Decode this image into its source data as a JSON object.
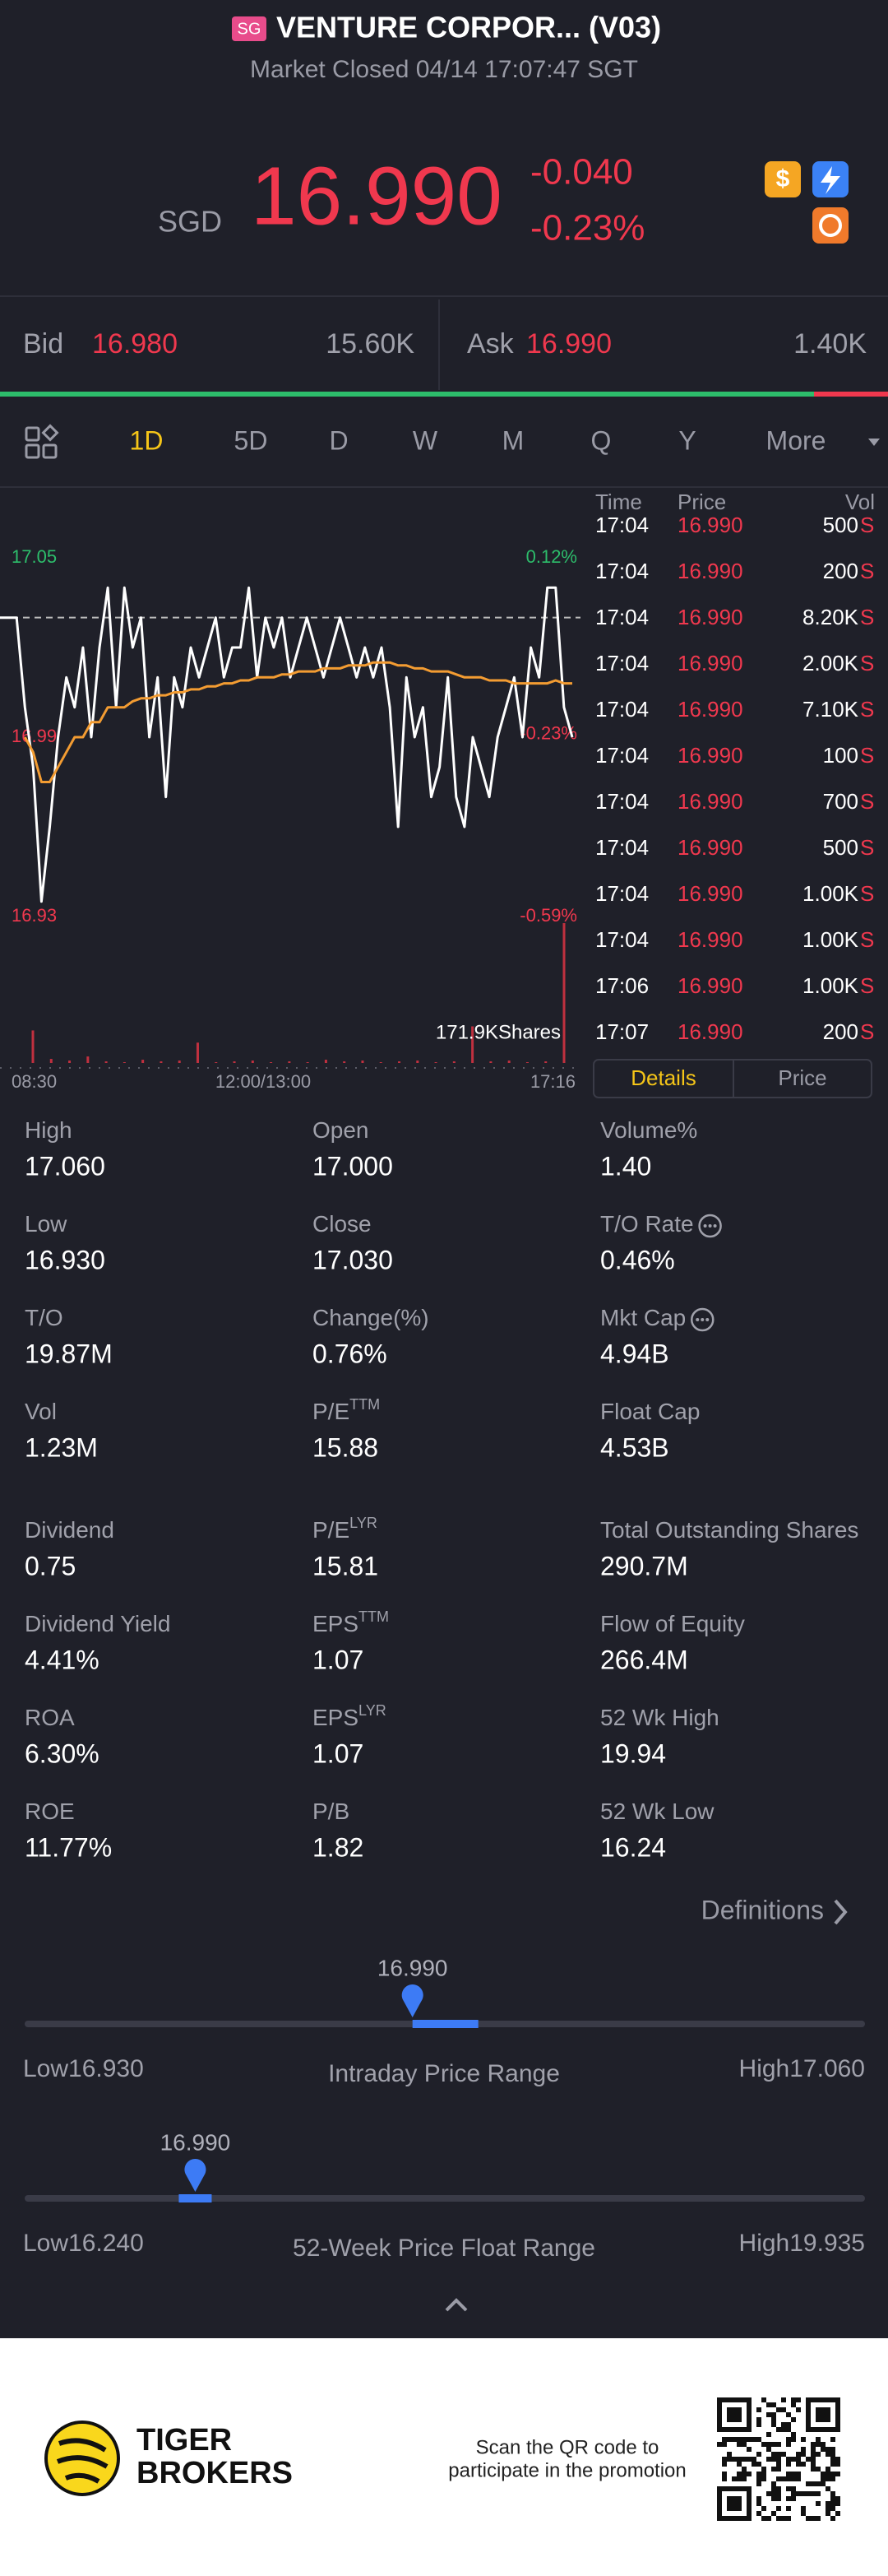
{
  "header": {
    "badge": "SG",
    "title": "VENTURE CORPOR... (V03)",
    "status": "Market Closed 04/14 17:07:47 SGT",
    "currency": "SGD",
    "price": "16.990",
    "change": "-0.040",
    "change_pct": "-0.23%"
  },
  "quote": {
    "bid_label": "Bid",
    "bid": "16.980",
    "bid_size": "15.60K",
    "ask_label": "Ask",
    "ask": "16.990",
    "ask_size": "1.40K"
  },
  "tabs": [
    "1D",
    "5D",
    "D",
    "W",
    "M",
    "Q",
    "Y",
    "More"
  ],
  "active_tab": 0,
  "chart_data": {
    "type": "line",
    "series": [
      {
        "color": "#ffffff",
        "values": [
          17.03,
          17.03,
          17.03,
          17.0,
          16.98,
          16.935,
          16.96,
          16.99,
          17.01,
          17.0,
          17.02,
          16.99,
          17.02,
          17.04,
          17.0,
          17.04,
          17.02,
          17.03,
          16.99,
          17.01,
          16.97,
          17.01,
          17.0,
          17.02,
          17.01,
          17.02,
          17.03,
          17.01,
          17.02,
          17.02,
          17.04,
          17.01,
          17.03,
          17.02,
          17.03,
          17.01,
          17.02,
          17.03,
          17.02,
          17.01,
          17.02,
          17.03,
          17.02,
          17.01,
          17.02,
          17.01,
          17.02,
          17.0,
          16.96,
          17.01,
          16.99,
          17.0,
          16.97,
          16.98,
          17.01,
          16.97,
          16.96,
          16.99,
          16.98,
          16.97,
          16.99,
          17.0,
          17.01,
          16.99,
          17.02,
          17.01,
          17.04,
          17.04,
          17.0,
          16.99
        ]
      },
      {
        "color": "#f39c32",
        "values": [
          null,
          null,
          null,
          16.99,
          16.985,
          16.975,
          16.975,
          16.98,
          16.985,
          16.99,
          16.99,
          16.995,
          16.995,
          17.0,
          17.0,
          17.0,
          17.002,
          17.003,
          17.003,
          17.004,
          17.004,
          17.005,
          17.005,
          17.006,
          17.006,
          17.007,
          17.007,
          17.008,
          17.008,
          17.009,
          17.009,
          17.01,
          17.01,
          17.01,
          17.011,
          17.011,
          17.012,
          17.012,
          17.012,
          17.013,
          17.013,
          17.013,
          17.014,
          17.014,
          17.014,
          17.015,
          17.015,
          17.015,
          17.014,
          17.014,
          17.013,
          17.013,
          17.012,
          17.012,
          17.012,
          17.011,
          17.01,
          17.01,
          17.01,
          17.009,
          17.009,
          17.009,
          17.008,
          17.008,
          17.008,
          17.008,
          17.008,
          17.009,
          17.008,
          17.008
        ]
      }
    ],
    "ylim": [
      16.93,
      17.05
    ],
    "yticks": [
      17.05,
      16.99,
      16.93
    ],
    "y2lim": [
      -0.59,
      0.12
    ],
    "y2ticks": [
      {
        "value": 0.12,
        "label": "0.12%"
      },
      {
        "value": -0.23,
        "label": "-0.23%"
      },
      {
        "value": -0.59,
        "label": "-0.59%"
      }
    ],
    "reference_line": 17.03,
    "up_color": "#2dbd6b",
    "down_color": "#f0384e",
    "xtick_labels": [
      "08:30",
      "12:00/13:00",
      "17:16"
    ],
    "volume": {
      "values": [
        40,
        5,
        3,
        8,
        2,
        1,
        4,
        2,
        3,
        25,
        1,
        2,
        3,
        1,
        2,
        1,
        4,
        2,
        3,
        1,
        2,
        3,
        1,
        2,
        45,
        2,
        3,
        1,
        2,
        171.9
      ],
      "ylim": [
        0,
        171.9
      ],
      "color": "#c0303f",
      "label": "171.9KShares"
    }
  },
  "trades": {
    "columns": [
      "Time",
      "Price",
      "Vol"
    ],
    "rows": [
      [
        "17:04",
        "16.990",
        "500",
        "S"
      ],
      [
        "17:04",
        "16.990",
        "200",
        "S"
      ],
      [
        "17:04",
        "16.990",
        "8.20K",
        "S"
      ],
      [
        "17:04",
        "16.990",
        "2.00K",
        "S"
      ],
      [
        "17:04",
        "16.990",
        "7.10K",
        "S"
      ],
      [
        "17:04",
        "16.990",
        "100",
        "S"
      ],
      [
        "17:04",
        "16.990",
        "700",
        "S"
      ],
      [
        "17:04",
        "16.990",
        "500",
        "S"
      ],
      [
        "17:04",
        "16.990",
        "1.00K",
        "S"
      ],
      [
        "17:04",
        "16.990",
        "1.00K",
        "S"
      ],
      [
        "17:06",
        "16.990",
        "1.00K",
        "S"
      ],
      [
        "17:07",
        "16.990",
        "200",
        "S"
      ]
    ]
  },
  "detail_tabs": [
    "Details",
    "Price"
  ],
  "stats": [
    {
      "label": "High",
      "value": "17.060"
    },
    {
      "label": "Open",
      "value": "17.000"
    },
    {
      "label": "Volume%",
      "value": "1.40"
    },
    {
      "label": "Low",
      "value": "16.930"
    },
    {
      "label": "Close",
      "value": "17.030"
    },
    {
      "label": "T/O Rate",
      "value": "0.46%",
      "info": true
    },
    {
      "label": "T/O",
      "value": "19.87M"
    },
    {
      "label": "Change(%)",
      "value": "0.76%"
    },
    {
      "label": "Mkt Cap",
      "value": "4.94B",
      "info": true
    },
    {
      "label": "Vol",
      "value": "1.23M"
    },
    {
      "label": "P/E",
      "sup": "TTM",
      "value": "15.88"
    },
    {
      "label": "Float Cap",
      "value": "4.53B"
    },
    {
      "label": "Dividend",
      "value": "0.75"
    },
    {
      "label": "P/E",
      "sup": "LYR",
      "value": "15.81"
    },
    {
      "label": "Total Outstanding Shares",
      "value": "290.7M"
    },
    {
      "label": "Dividend Yield",
      "value": "4.41%"
    },
    {
      "label": "EPS",
      "sup": "TTM",
      "value": "1.07"
    },
    {
      "label": "Flow of Equity",
      "value": "266.4M"
    },
    {
      "label": "ROA",
      "value": "6.30%"
    },
    {
      "label": "EPS",
      "sup": "LYR",
      "value": "1.07"
    },
    {
      "label": "52 Wk High",
      "value": "19.94"
    },
    {
      "label": "ROE",
      "value": "11.77%"
    },
    {
      "label": "P/B",
      "value": "1.82"
    },
    {
      "label": "52 Wk Low",
      "value": "16.24"
    }
  ],
  "definitions": "Definitions",
  "ranges": [
    {
      "current": "16.990",
      "low_label": "Low",
      "low": "16.930",
      "high_label": "High",
      "high": "17.060",
      "title": "Intraday Price Range"
    },
    {
      "current": "16.990",
      "low_label": "Low",
      "low": "16.240",
      "high_label": "High",
      "high": "19.935",
      "title": "52-Week Price Float Range"
    }
  ],
  "footer": {
    "brand": [
      "TIGER",
      "BROKERS"
    ],
    "promo": [
      "Scan the QR code to",
      "participate in the promotion"
    ]
  }
}
